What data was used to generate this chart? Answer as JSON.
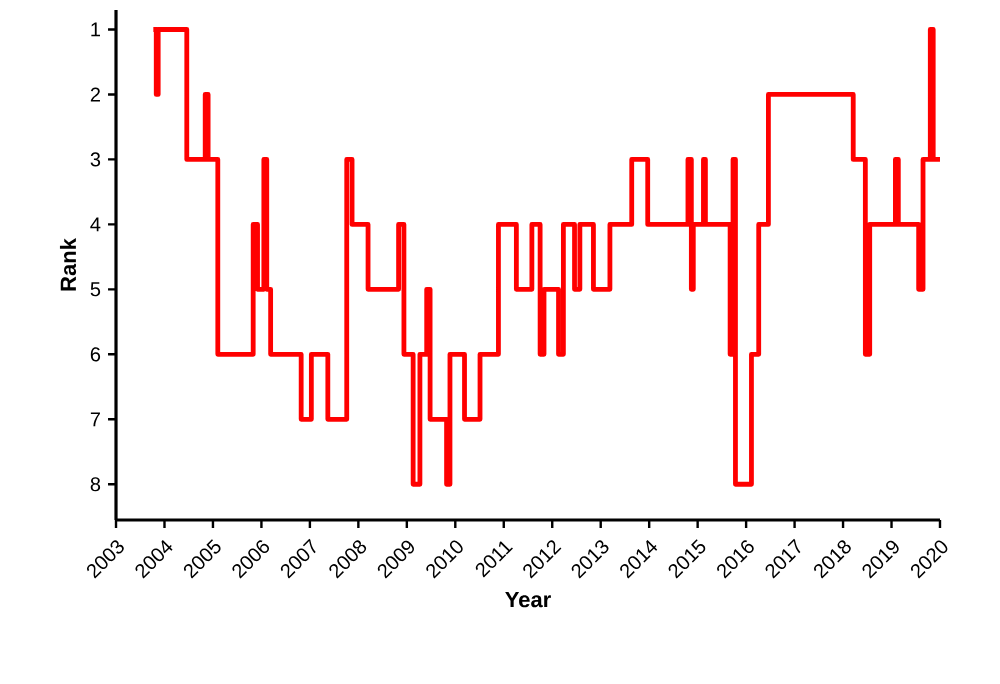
{
  "chart_data": {
    "type": "step",
    "xlabel": "Year",
    "ylabel": "Rank",
    "xlim": [
      2003,
      2020
    ],
    "xticks": [
      2003,
      2004,
      2005,
      2006,
      2007,
      2008,
      2009,
      2010,
      2011,
      2012,
      2013,
      2014,
      2015,
      2016,
      2017,
      2018,
      2019,
      2020
    ],
    "ylim": [
      8.55,
      0.7
    ],
    "yticks": [
      1,
      2,
      3,
      4,
      5,
      6,
      7,
      8
    ],
    "series": [
      {
        "color": "#ff0000",
        "x": [
          2003.77,
          2003.83,
          2003.87,
          2004.46,
          2004.84,
          2004.9,
          2005.1,
          2005.83,
          2005.92,
          2006.05,
          2006.11,
          2006.19,
          2006.82,
          2007.03,
          2007.37,
          2007.76,
          2007.87,
          2008.2,
          2008.83,
          2008.94,
          2009.13,
          2009.27,
          2009.41,
          2009.48,
          2009.82,
          2009.89,
          2010.19,
          2010.51,
          2010.89,
          2011.26,
          2011.58,
          2011.75,
          2011.83,
          2012.13,
          2012.23,
          2012.46,
          2012.57,
          2012.85,
          2013.19,
          2013.64,
          2013.97,
          2014.8,
          2014.87,
          2014.91,
          2015.12,
          2015.16,
          2015.67,
          2015.73,
          2015.78,
          2016.11,
          2016.26,
          2016.46,
          2018.21,
          2018.46,
          2018.55,
          2019.08,
          2019.14,
          2019.56,
          2019.65,
          2019.8,
          2019.86,
          2020.0
        ],
        "values": [
          1,
          2,
          1,
          3,
          2,
          3,
          6,
          4,
          5,
          3,
          5,
          6,
          7,
          6,
          7,
          3,
          4,
          5,
          4,
          6,
          8,
          6,
          5,
          7,
          8,
          6,
          7,
          6,
          4,
          5,
          4,
          6,
          5,
          6,
          4,
          5,
          4,
          5,
          4,
          3,
          4,
          3,
          5,
          4,
          3,
          4,
          6,
          3,
          8,
          6,
          4,
          2,
          3,
          6,
          4,
          3,
          4,
          5,
          3,
          1,
          3,
          3
        ]
      }
    ]
  }
}
